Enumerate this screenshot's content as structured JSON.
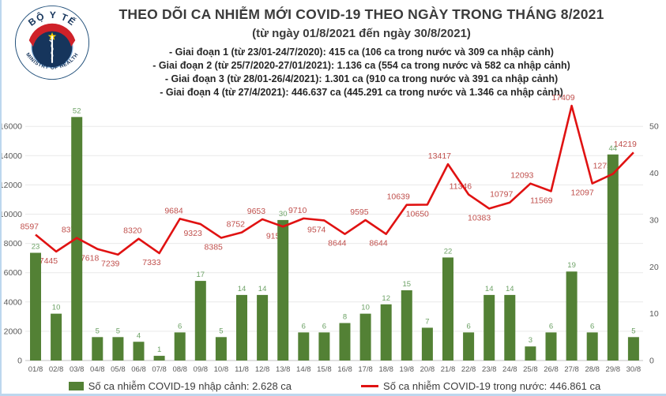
{
  "logo": {
    "top_text": "BỘ Y TẾ",
    "bottom_text": "MINISTRY OF HEALTH"
  },
  "header": {
    "title": "THEO DÕI CA NHIỄM MỚI COVID-19 THEO NGÀY TRONG THÁNG 8/2021",
    "subtitle": "(từ ngày 01/8/2021 đến ngày 30/8/2021)"
  },
  "stages": [
    "- Giai đoạn 1 (từ 23/01-24/7/2020): 415 ca (106 ca trong nước và 309 ca nhập cảnh)",
    "- Giai đoạn 2 (từ 25/7/2020-27/01/2021): 1.136 ca (554 ca trong nước và 582 ca nhập cảnh)",
    "- Giai đoạn 3 (từ 28/01-26/4/2021): 1.301 ca (910 ca trong nước và 391 ca nhập cảnh)",
    "- Giai đoạn 4 (từ 27/4/2021): 446.637 ca (445.291 ca trong nước và 1.346 ca nhập cảnh)"
  ],
  "legend": {
    "imported": "Số ca nhiễm COVID-19 nhập cảnh: 2.628 ca",
    "domestic": "Số ca nhiễm COVID-19 trong nước: 446.861 ca"
  },
  "colors": {
    "bar": "#538135",
    "bar_label": "#6da266",
    "line": "#e01212",
    "line_label": "#c0504d",
    "axis_text": "#595959",
    "grid": "#e9e9e9",
    "baseline": "#c3c3c3",
    "logo_navy": "#16355c",
    "logo_red": "#cf2129",
    "logo_star": "#ffd400"
  },
  "chart_data": {
    "type": "bar+line",
    "title": "THEO DÕI CA NHIỄM MỚI COVID-19 THEO NGÀY TRONG THÁNG 8/2021",
    "categories": [
      "01/8",
      "02/8",
      "03/8",
      "04/8",
      "05/8",
      "06/8",
      "07/8",
      "08/8",
      "09/8",
      "10/8",
      "11/8",
      "12/8",
      "13/8",
      "14/8",
      "15/8",
      "16/8",
      "17/8",
      "18/8",
      "19/8",
      "20/8",
      "21/8",
      "22/8",
      "23/8",
      "24/8",
      "25/8",
      "26/8",
      "27/8",
      "28/8",
      "29/8",
      "30/8"
    ],
    "series": [
      {
        "name": "Số ca nhiễm COVID-19 nhập cảnh",
        "type": "bar",
        "axis": "right",
        "values": [
          23,
          10,
          52,
          5,
          5,
          4,
          1,
          6,
          17,
          5,
          14,
          14,
          30,
          6,
          6,
          8,
          10,
          12,
          15,
          7,
          22,
          6,
          14,
          14,
          3,
          6,
          19,
          6,
          44,
          5
        ]
      },
      {
        "name": "Số ca nhiễm COVID-19 trong nước",
        "type": "line",
        "axis": "left",
        "values": [
          8597,
          7445,
          8377,
          7618,
          7239,
          8320,
          7333,
          9684,
          9323,
          8385,
          8752,
          9653,
          9150,
          9710,
          9574,
          8644,
          9595,
          8644,
          10639,
          10650,
          13417,
          11346,
          10383,
          10797,
          12093,
          11569,
          17409,
          12097,
          12752,
          14219
        ],
        "label_side": [
          "a",
          "b",
          "a",
          "b",
          "b",
          "a",
          "b",
          "a",
          "b",
          "b",
          "a",
          "a",
          "b",
          "a",
          "b",
          "b",
          "a",
          "b",
          "a",
          "b",
          "a",
          "a",
          "b",
          "a",
          "a",
          "b",
          "a",
          "b",
          "a",
          "a"
        ]
      }
    ],
    "left_axis": {
      "min": 0,
      "max": 16000,
      "step": 2000
    },
    "right_axis": {
      "min": 0,
      "max": 50,
      "step": 10
    },
    "grid": true,
    "legend_position": "bottom"
  }
}
